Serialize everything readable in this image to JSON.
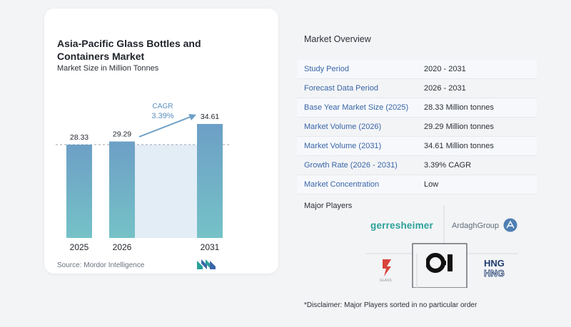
{
  "chart_data": {
    "type": "bar",
    "title": "Asia-Pacific Glass Bottles and Containers Market",
    "subtitle": "Market Size in Million Tonnes",
    "categories": [
      "2025",
      "2026",
      "2031"
    ],
    "values": [
      28.33,
      29.29,
      34.61
    ],
    "value_labels": [
      "28.33",
      "29.29",
      "34.61"
    ],
    "cagr_label": "CAGR",
    "cagr_value": "3.39%",
    "bar_color": "#6d9fc6",
    "bar_color_bottom": "#75c2c7",
    "grid": false
  },
  "source": "Source:  Mordor Intelligence",
  "overview": {
    "title": "Market Overview",
    "rows": [
      {
        "label": "Study Period",
        "value": "2020 - 2031"
      },
      {
        "label": "Forecast Data Period",
        "value": "2026 - 2031"
      },
      {
        "label": "Base Year Market Size (2025)",
        "value": "28.33 Million tonnes"
      },
      {
        "label": "Market Volume (2026)",
        "value": "29.29 Million tonnes"
      },
      {
        "label": "Market Volume (2031)",
        "value": "34.61 Million tonnes"
      },
      {
        "label": "Growth Rate (2026 - 2031)",
        "value": "3.39% CAGR"
      },
      {
        "label": "Market Concentration",
        "value": "Low"
      }
    ]
  },
  "players": {
    "title": "Major Players",
    "logos": {
      "gerresheimer": "gerresheimer",
      "ardagh": "ArdaghGroup",
      "oi": "O-I",
      "hng": "HNG",
      "pnp": "PGP GLASS"
    }
  },
  "disclaimer": "*Disclaimer: Major Players sorted in no particular order",
  "colors": {
    "label_blue": "#3a66a8",
    "teal": "#2aa198"
  }
}
